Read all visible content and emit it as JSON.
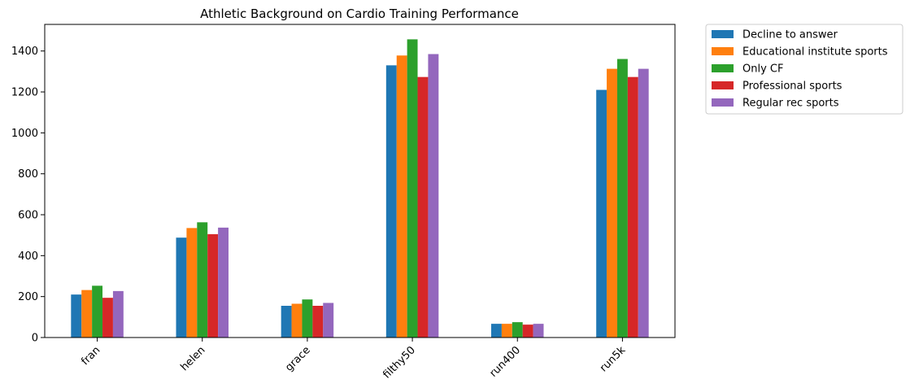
{
  "chart_data": {
    "type": "bar",
    "title": "Athletic Background on Cardio Training Performance",
    "xlabel": "",
    "ylabel": "",
    "categories": [
      "fran",
      "helen",
      "grace",
      "filthy50",
      "run400",
      "run5k"
    ],
    "yticks": [
      "0",
      "200",
      "400",
      "600",
      "800",
      "1000",
      "1200",
      "1400"
    ],
    "ylim": [
      0,
      1530
    ],
    "legend_position": "outside-top-right",
    "series": [
      {
        "name": "Decline to answer",
        "color": "#1f77b4",
        "values": [
          210,
          488,
          155,
          1330,
          67,
          1210
        ]
      },
      {
        "name": "Educational institute sports",
        "color": "#ff7f0e",
        "values": [
          232,
          535,
          165,
          1378,
          67,
          1313
        ]
      },
      {
        "name": "Only CF",
        "color": "#2ca02c",
        "values": [
          253,
          563,
          186,
          1457,
          75,
          1361
        ]
      },
      {
        "name": "Professional sports",
        "color": "#d62728",
        "values": [
          194,
          505,
          155,
          1273,
          63,
          1273
        ]
      },
      {
        "name": "Regular rec sports",
        "color": "#9467bd",
        "values": [
          227,
          537,
          169,
          1385,
          67,
          1313
        ]
      }
    ]
  }
}
